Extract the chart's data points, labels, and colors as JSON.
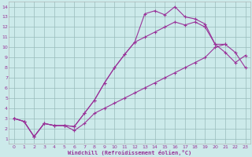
{
  "bg_color": "#cceaea",
  "line_color": "#993399",
  "grid_color": "#99bbbb",
  "xlabel": "Windchill (Refroidissement éolien,°C)",
  "xlim": [
    -0.5,
    23.5
  ],
  "ylim": [
    0.5,
    14.5
  ],
  "xticks": [
    0,
    1,
    2,
    3,
    4,
    5,
    6,
    7,
    8,
    9,
    10,
    11,
    12,
    13,
    14,
    15,
    16,
    17,
    18,
    19,
    20,
    21,
    22,
    23
  ],
  "yticks": [
    1,
    2,
    3,
    4,
    5,
    6,
    7,
    8,
    9,
    10,
    11,
    12,
    13,
    14
  ],
  "curve_top_x": [
    0,
    1,
    2,
    3,
    4,
    5,
    6,
    7,
    8,
    9,
    10,
    11,
    12,
    13,
    14,
    15,
    16,
    17,
    18,
    19,
    20,
    21
  ],
  "curve_top_y": [
    3,
    2.7,
    1.2,
    2.5,
    2.3,
    2.3,
    2.2,
    3.5,
    4.8,
    6.5,
    8.0,
    9.3,
    10.5,
    13.3,
    13.6,
    13.2,
    14.0,
    13.0,
    12.8,
    12.3,
    10.3,
    10.3
  ],
  "curve_mid_x": [
    0,
    1,
    2,
    3,
    4,
    5,
    6,
    7,
    8,
    9,
    10,
    11,
    12,
    13,
    14,
    15,
    16,
    17,
    18,
    19,
    20,
    21,
    22,
    23
  ],
  "curve_mid_y": [
    3,
    2.7,
    1.2,
    2.5,
    2.3,
    2.3,
    2.2,
    3.5,
    4.8,
    6.5,
    8.0,
    9.3,
    10.5,
    11.0,
    11.5,
    12.0,
    12.5,
    12.2,
    12.5,
    12.0,
    10.3,
    9.5,
    8.5,
    9.2
  ],
  "curve_bot_x": [
    0,
    1,
    2,
    3,
    4,
    5,
    6,
    7,
    8,
    9,
    10,
    11,
    12,
    13,
    14,
    15,
    16,
    17,
    18,
    19,
    20,
    21,
    22,
    23
  ],
  "curve_bot_y": [
    3,
    2.7,
    1.2,
    2.5,
    2.3,
    2.3,
    1.8,
    2.5,
    3.5,
    4.0,
    4.5,
    5.0,
    5.5,
    6.0,
    6.5,
    7.0,
    7.5,
    8.0,
    8.5,
    9.0,
    10.0,
    10.3,
    9.5,
    8.0
  ]
}
